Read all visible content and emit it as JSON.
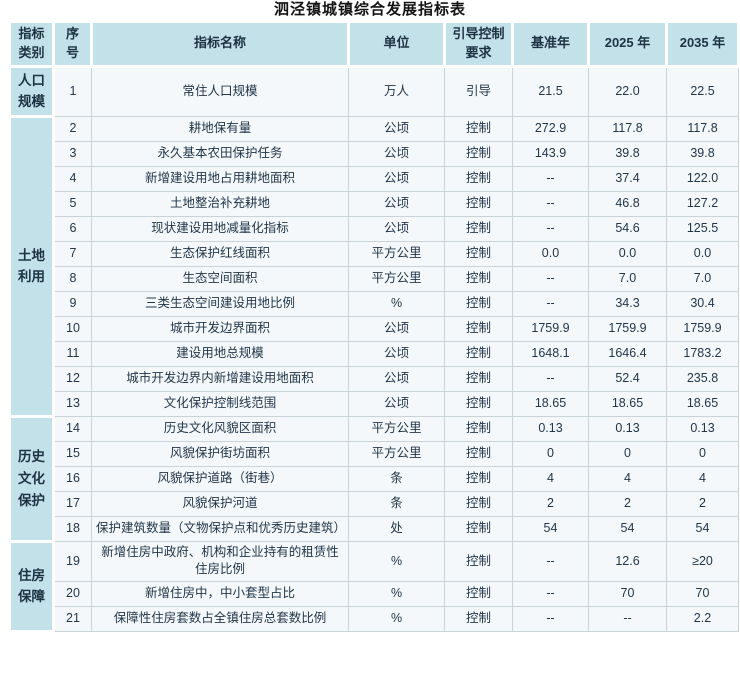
{
  "title": "泗泾镇城镇综合发展指标表",
  "colors": {
    "header_bg": "#c2e1e8",
    "body_bg": "#f4f8fa",
    "grid_border": "#c9d3d8",
    "text": "#22364a"
  },
  "table": {
    "headers": [
      "指标类别",
      "序号",
      "指标名称",
      "单位",
      "引导控制要求",
      "基准年",
      "2025 年",
      "2035 年"
    ],
    "categories": [
      {
        "label": "人口规模",
        "lines": [
          "人口",
          "规模"
        ],
        "rows": 1
      },
      {
        "label": "土地利用",
        "lines": [
          "土地",
          "利用"
        ],
        "rows": 12
      },
      {
        "label": "历史文化保护",
        "lines": [
          "历史",
          "文化",
          "保护"
        ],
        "rows": 5
      },
      {
        "label": "住房保障",
        "lines": [
          "住房",
          "保障"
        ],
        "rows": 3
      }
    ],
    "rows": [
      {
        "no": "1",
        "name": "常住人口规模",
        "unit": "万人",
        "req": "引导",
        "base": "21.5",
        "y2025": "22.0",
        "y2035": "22.5"
      },
      {
        "no": "2",
        "name": "耕地保有量",
        "unit": "公顷",
        "req": "控制",
        "base": "272.9",
        "y2025": "117.8",
        "y2035": "117.8"
      },
      {
        "no": "3",
        "name": "永久基本农田保护任务",
        "unit": "公顷",
        "req": "控制",
        "base": "143.9",
        "y2025": "39.8",
        "y2035": "39.8"
      },
      {
        "no": "4",
        "name": "新增建设用地占用耕地面积",
        "unit": "公顷",
        "req": "控制",
        "base": "--",
        "y2025": "37.4",
        "y2035": "122.0"
      },
      {
        "no": "5",
        "name": "土地整治补充耕地",
        "unit": "公顷",
        "req": "控制",
        "base": "--",
        "y2025": "46.8",
        "y2035": "127.2"
      },
      {
        "no": "6",
        "name": "现状建设用地减量化指标",
        "unit": "公顷",
        "req": "控制",
        "base": "--",
        "y2025": "54.6",
        "y2035": "125.5"
      },
      {
        "no": "7",
        "name": "生态保护红线面积",
        "unit": "平方公里",
        "req": "控制",
        "base": "0.0",
        "y2025": "0.0",
        "y2035": "0.0"
      },
      {
        "no": "8",
        "name": "生态空间面积",
        "unit": "平方公里",
        "req": "控制",
        "base": "--",
        "y2025": "7.0",
        "y2035": "7.0"
      },
      {
        "no": "9",
        "name": "三类生态空间建设用地比例",
        "unit": "%",
        "req": "控制",
        "base": "--",
        "y2025": "34.3",
        "y2035": "30.4"
      },
      {
        "no": "10",
        "name": "城市开发边界面积",
        "unit": "公顷",
        "req": "控制",
        "base": "1759.9",
        "y2025": "1759.9",
        "y2035": "1759.9"
      },
      {
        "no": "11",
        "name": "建设用地总规模",
        "unit": "公顷",
        "req": "控制",
        "base": "1648.1",
        "y2025": "1646.4",
        "y2035": "1783.2"
      },
      {
        "no": "12",
        "name": "城市开发边界内新增建设用地面积",
        "unit": "公顷",
        "req": "控制",
        "base": "--",
        "y2025": "52.4",
        "y2035": "235.8"
      },
      {
        "no": "13",
        "name": "文化保护控制线范围",
        "unit": "公顷",
        "req": "控制",
        "base": "18.65",
        "y2025": "18.65",
        "y2035": "18.65"
      },
      {
        "no": "14",
        "name": "历史文化风貌区面积",
        "unit": "平方公里",
        "req": "控制",
        "base": "0.13",
        "y2025": "0.13",
        "y2035": "0.13"
      },
      {
        "no": "15",
        "name": "风貌保护街坊面积",
        "unit": "平方公里",
        "req": "控制",
        "base": "0",
        "y2025": "0",
        "y2035": "0"
      },
      {
        "no": "16",
        "name": "风貌保护道路（街巷）",
        "unit": "条",
        "req": "控制",
        "base": "4",
        "y2025": "4",
        "y2035": "4"
      },
      {
        "no": "17",
        "name": "风貌保护河道",
        "unit": "条",
        "req": "控制",
        "base": "2",
        "y2025": "2",
        "y2035": "2"
      },
      {
        "no": "18",
        "name": "保护建筑数量（文物保护点和优秀历史建筑）",
        "unit": "处",
        "req": "控制",
        "base": "54",
        "y2025": "54",
        "y2035": "54"
      },
      {
        "no": "19",
        "name": "新增住房中政府、机构和企业持有的租赁性住房比例",
        "unit": "%",
        "req": "控制",
        "base": "--",
        "y2025": "12.6",
        "y2035": "≥20"
      },
      {
        "no": "20",
        "name": "新增住房中，中小套型占比",
        "unit": "%",
        "req": "控制",
        "base": "--",
        "y2025": "70",
        "y2035": "70"
      },
      {
        "no": "21",
        "name": "保障性住房套数占全镇住房总套数比例",
        "unit": "%",
        "req": "控制",
        "base": "--",
        "y2025": "--",
        "y2035": "2.2"
      }
    ]
  }
}
